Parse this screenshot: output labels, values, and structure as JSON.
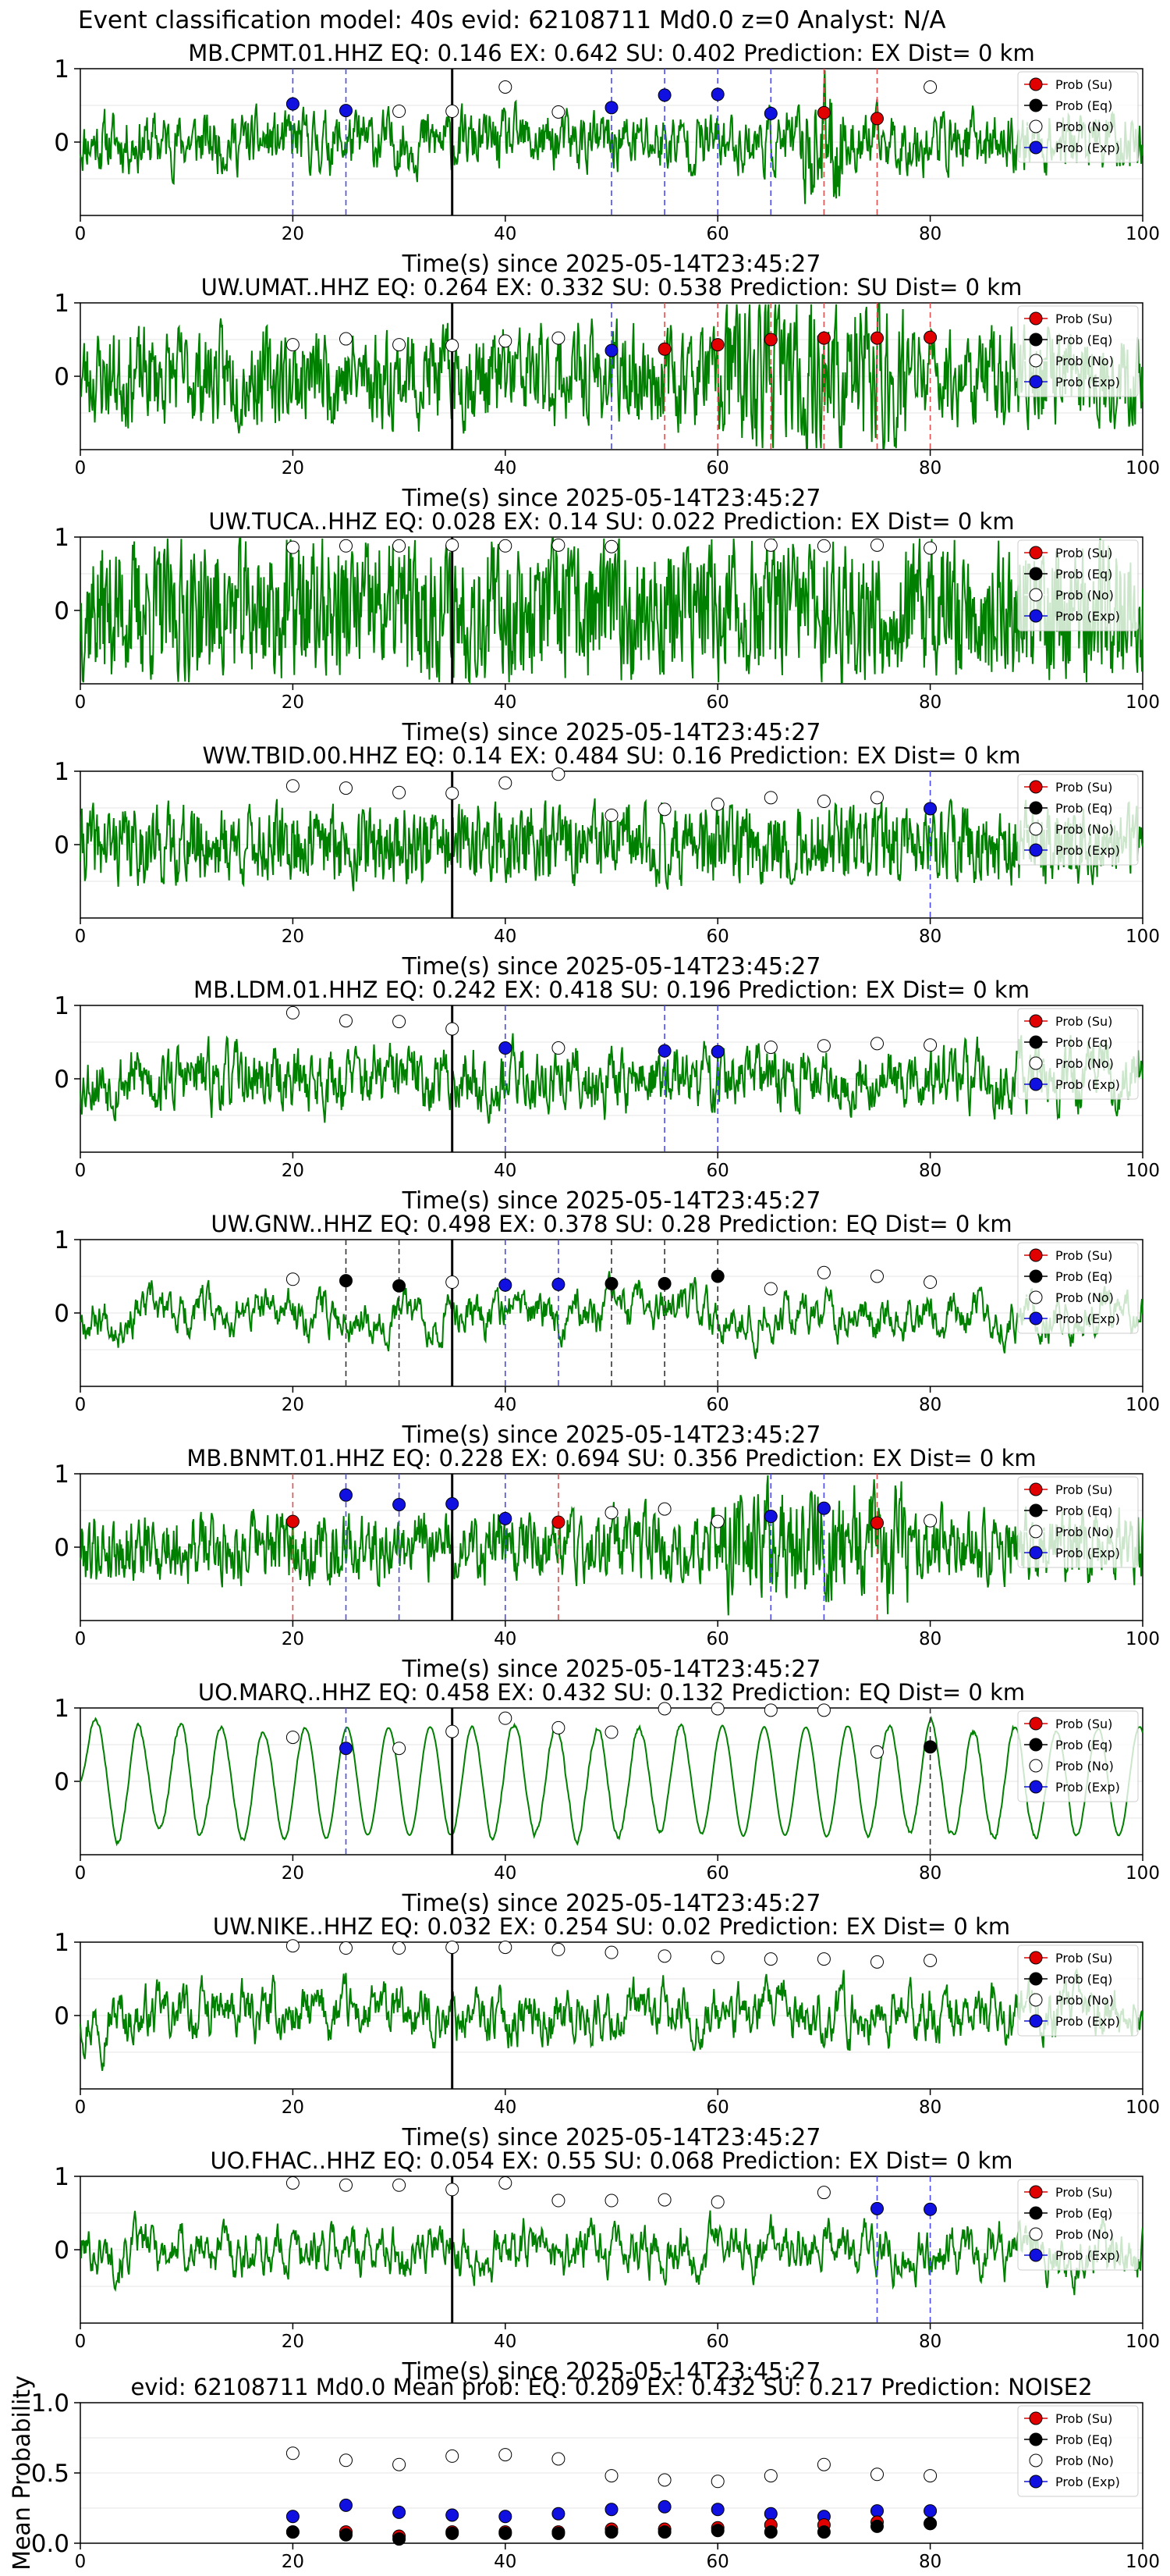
{
  "figure": {
    "title": "Event classification model: 40s evid: 62108711 Md0.0 z=0 Analyst: N/A"
  },
  "legend_items": [
    {
      "label": "Prob (Su)",
      "fill": "#e00000"
    },
    {
      "label": "Prob (Eq)",
      "fill": "#000000"
    },
    {
      "label": "Prob (No)",
      "fill": "#ffffff"
    },
    {
      "label": "Prob (Exp)",
      "fill": "#1010e0"
    }
  ],
  "colors": {
    "waveform": "#008000",
    "su": "#e00000",
    "eq": "#000000",
    "no": "#ffffff",
    "exp": "#1010e0",
    "origin_line": "#000000"
  },
  "chart_data": [
    {
      "type": "line",
      "title": "MB.CPMT.01.HHZ   EQ: 0.146  EX: 0.642  SU: 0.402   Prediction: EX    Dist= 0 km",
      "xlabel": "Time(s) since 2025-05-14T23:45:27",
      "ylabel": "",
      "xlim": [
        0,
        100
      ],
      "ylim": [
        -1,
        1
      ],
      "xticks": [
        "0",
        "20",
        "40",
        "60",
        "80",
        "100"
      ],
      "yticks": [
        "1",
        "0"
      ],
      "grid": true,
      "legend": "top-right",
      "origin_time": 35,
      "points": [
        {
          "t": 20,
          "p": 0.52,
          "cls": "exp"
        },
        {
          "t": 25,
          "p": 0.43,
          "cls": "exp"
        },
        {
          "t": 30,
          "p": 0.42,
          "cls": "no"
        },
        {
          "t": 35,
          "p": 0.42,
          "cls": "no"
        },
        {
          "t": 40,
          "p": 0.75,
          "cls": "no"
        },
        {
          "t": 45,
          "p": 0.41,
          "cls": "no"
        },
        {
          "t": 50,
          "p": 0.47,
          "cls": "exp"
        },
        {
          "t": 55,
          "p": 0.64,
          "cls": "exp"
        },
        {
          "t": 60,
          "p": 0.65,
          "cls": "exp"
        },
        {
          "t": 65,
          "p": 0.39,
          "cls": "exp"
        },
        {
          "t": 70,
          "p": 0.4,
          "cls": "su"
        },
        {
          "t": 75,
          "p": 0.32,
          "cls": "su"
        },
        {
          "t": 80,
          "p": 0.75,
          "cls": "no"
        }
      ]
    },
    {
      "type": "line",
      "title": "UW.UMAT..HHZ   EQ: 0.264  EX: 0.332  SU: 0.538   Prediction: SU    Dist= 0 km",
      "xlabel": "Time(s) since 2025-05-14T23:45:27",
      "ylabel": "",
      "xlim": [
        0,
        100
      ],
      "ylim": [
        -1,
        1
      ],
      "xticks": [
        "0",
        "20",
        "40",
        "60",
        "80",
        "100"
      ],
      "yticks": [
        "1",
        "0"
      ],
      "grid": true,
      "legend": "top-right",
      "origin_time": 35,
      "points": [
        {
          "t": 20,
          "p": 0.43,
          "cls": "no"
        },
        {
          "t": 25,
          "p": 0.51,
          "cls": "no"
        },
        {
          "t": 30,
          "p": 0.43,
          "cls": "no"
        },
        {
          "t": 35,
          "p": 0.42,
          "cls": "no"
        },
        {
          "t": 40,
          "p": 0.48,
          "cls": "no"
        },
        {
          "t": 45,
          "p": 0.52,
          "cls": "no"
        },
        {
          "t": 50,
          "p": 0.35,
          "cls": "exp"
        },
        {
          "t": 55,
          "p": 0.37,
          "cls": "su"
        },
        {
          "t": 60,
          "p": 0.43,
          "cls": "su"
        },
        {
          "t": 65,
          "p": 0.5,
          "cls": "su"
        },
        {
          "t": 70,
          "p": 0.52,
          "cls": "su"
        },
        {
          "t": 75,
          "p": 0.52,
          "cls": "su"
        },
        {
          "t": 80,
          "p": 0.53,
          "cls": "su"
        }
      ]
    },
    {
      "type": "line",
      "title": "UW.TUCA..HHZ   EQ: 0.028  EX: 0.14  SU: 0.022   Prediction: EX    Dist= 0 km",
      "xlabel": "Time(s) since 2025-05-14T23:45:27",
      "ylabel": "",
      "xlim": [
        0,
        100
      ],
      "ylim": [
        -1,
        1
      ],
      "xticks": [
        "0",
        "20",
        "40",
        "60",
        "80",
        "100"
      ],
      "yticks": [
        "1",
        "0"
      ],
      "grid": true,
      "legend": "top-right",
      "origin_time": 35,
      "points": [
        {
          "t": 20,
          "p": 0.86,
          "cls": "no"
        },
        {
          "t": 25,
          "p": 0.88,
          "cls": "no"
        },
        {
          "t": 30,
          "p": 0.88,
          "cls": "no"
        },
        {
          "t": 35,
          "p": 0.89,
          "cls": "no"
        },
        {
          "t": 40,
          "p": 0.88,
          "cls": "no"
        },
        {
          "t": 45,
          "p": 0.89,
          "cls": "no"
        },
        {
          "t": 50,
          "p": 0.87,
          "cls": "no"
        },
        {
          "t": 65,
          "p": 0.89,
          "cls": "no"
        },
        {
          "t": 70,
          "p": 0.88,
          "cls": "no"
        },
        {
          "t": 75,
          "p": 0.89,
          "cls": "no"
        },
        {
          "t": 80,
          "p": 0.85,
          "cls": "no"
        }
      ]
    },
    {
      "type": "line",
      "title": "WW.TBID.00.HHZ   EQ: 0.14  EX: 0.484  SU: 0.16   Prediction: EX    Dist= 0 km",
      "xlabel": "Time(s) since 2025-05-14T23:45:27",
      "ylabel": "",
      "xlim": [
        0,
        100
      ],
      "ylim": [
        -1,
        1
      ],
      "xticks": [
        "0",
        "20",
        "40",
        "60",
        "80",
        "100"
      ],
      "yticks": [
        "1",
        "0"
      ],
      "grid": true,
      "legend": "top-right",
      "origin_time": 35,
      "points": [
        {
          "t": 20,
          "p": 0.8,
          "cls": "no"
        },
        {
          "t": 25,
          "p": 0.77,
          "cls": "no"
        },
        {
          "t": 30,
          "p": 0.71,
          "cls": "no"
        },
        {
          "t": 35,
          "p": 0.7,
          "cls": "no"
        },
        {
          "t": 40,
          "p": 0.84,
          "cls": "no"
        },
        {
          "t": 45,
          "p": 0.96,
          "cls": "no"
        },
        {
          "t": 50,
          "p": 0.4,
          "cls": "no"
        },
        {
          "t": 55,
          "p": 0.48,
          "cls": "no"
        },
        {
          "t": 60,
          "p": 0.55,
          "cls": "no"
        },
        {
          "t": 65,
          "p": 0.64,
          "cls": "no"
        },
        {
          "t": 70,
          "p": 0.59,
          "cls": "no"
        },
        {
          "t": 75,
          "p": 0.64,
          "cls": "no"
        },
        {
          "t": 80,
          "p": 0.49,
          "cls": "exp"
        }
      ]
    },
    {
      "type": "line",
      "title": "MB.LDM.01.HHZ   EQ: 0.242  EX: 0.418  SU: 0.196   Prediction: EX    Dist= 0 km",
      "xlabel": "Time(s) since 2025-05-14T23:45:27",
      "ylabel": "",
      "xlim": [
        0,
        100
      ],
      "ylim": [
        -1,
        1
      ],
      "xticks": [
        "0",
        "20",
        "40",
        "60",
        "80",
        "100"
      ],
      "yticks": [
        "1",
        "0"
      ],
      "grid": true,
      "legend": "top-right",
      "origin_time": 35,
      "points": [
        {
          "t": 20,
          "p": 0.9,
          "cls": "no"
        },
        {
          "t": 25,
          "p": 0.79,
          "cls": "no"
        },
        {
          "t": 30,
          "p": 0.78,
          "cls": "no"
        },
        {
          "t": 35,
          "p": 0.68,
          "cls": "no"
        },
        {
          "t": 40,
          "p": 0.42,
          "cls": "exp"
        },
        {
          "t": 45,
          "p": 0.42,
          "cls": "no"
        },
        {
          "t": 55,
          "p": 0.38,
          "cls": "exp"
        },
        {
          "t": 60,
          "p": 0.37,
          "cls": "exp"
        },
        {
          "t": 65,
          "p": 0.43,
          "cls": "no"
        },
        {
          "t": 70,
          "p": 0.45,
          "cls": "no"
        },
        {
          "t": 75,
          "p": 0.48,
          "cls": "no"
        },
        {
          "t": 80,
          "p": 0.46,
          "cls": "no"
        }
      ]
    },
    {
      "type": "line",
      "title": "UW.GNW..HHZ   EQ: 0.498  EX: 0.378  SU: 0.28   Prediction: EQ    Dist= 0 km",
      "xlabel": "Time(s) since 2025-05-14T23:45:27",
      "ylabel": "",
      "xlim": [
        0,
        100
      ],
      "ylim": [
        -1,
        1
      ],
      "xticks": [
        "0",
        "20",
        "40",
        "60",
        "80",
        "100"
      ],
      "yticks": [
        "1",
        "0"
      ],
      "grid": true,
      "legend": "top-right",
      "origin_time": 35,
      "points": [
        {
          "t": 20,
          "p": 0.46,
          "cls": "no"
        },
        {
          "t": 25,
          "p": 0.44,
          "cls": "eq"
        },
        {
          "t": 30,
          "p": 0.37,
          "cls": "eq"
        },
        {
          "t": 35,
          "p": 0.42,
          "cls": "no"
        },
        {
          "t": 40,
          "p": 0.38,
          "cls": "exp"
        },
        {
          "t": 45,
          "p": 0.39,
          "cls": "exp"
        },
        {
          "t": 50,
          "p": 0.4,
          "cls": "eq"
        },
        {
          "t": 55,
          "p": 0.4,
          "cls": "eq"
        },
        {
          "t": 60,
          "p": 0.5,
          "cls": "eq"
        },
        {
          "t": 65,
          "p": 0.33,
          "cls": "no"
        },
        {
          "t": 70,
          "p": 0.55,
          "cls": "no"
        },
        {
          "t": 75,
          "p": 0.5,
          "cls": "no"
        },
        {
          "t": 80,
          "p": 0.42,
          "cls": "no"
        }
      ]
    },
    {
      "type": "line",
      "title": "MB.BNMT.01.HHZ   EQ: 0.228  EX: 0.694  SU: 0.356   Prediction: EX    Dist= 0 km",
      "xlabel": "Time(s) since 2025-05-14T23:45:27",
      "ylabel": "",
      "xlim": [
        0,
        100
      ],
      "ylim": [
        -1,
        1
      ],
      "xticks": [
        "0",
        "20",
        "40",
        "60",
        "80",
        "100"
      ],
      "yticks": [
        "1",
        "0"
      ],
      "grid": true,
      "legend": "top-right",
      "origin_time": 35,
      "points": [
        {
          "t": 20,
          "p": 0.35,
          "cls": "su"
        },
        {
          "t": 25,
          "p": 0.71,
          "cls": "exp"
        },
        {
          "t": 30,
          "p": 0.58,
          "cls": "exp"
        },
        {
          "t": 35,
          "p": 0.59,
          "cls": "exp"
        },
        {
          "t": 40,
          "p": 0.39,
          "cls": "exp"
        },
        {
          "t": 45,
          "p": 0.34,
          "cls": "su"
        },
        {
          "t": 50,
          "p": 0.47,
          "cls": "no"
        },
        {
          "t": 55,
          "p": 0.52,
          "cls": "no"
        },
        {
          "t": 60,
          "p": 0.35,
          "cls": "no"
        },
        {
          "t": 65,
          "p": 0.42,
          "cls": "exp"
        },
        {
          "t": 70,
          "p": 0.53,
          "cls": "exp"
        },
        {
          "t": 75,
          "p": 0.33,
          "cls": "su"
        },
        {
          "t": 80,
          "p": 0.36,
          "cls": "no"
        }
      ]
    },
    {
      "type": "line",
      "title": "UO.MARQ..HHZ   EQ: 0.458  EX: 0.432  SU: 0.132   Prediction: EQ    Dist= 0 km",
      "xlabel": "Time(s) since 2025-05-14T23:45:27",
      "ylabel": "",
      "xlim": [
        0,
        100
      ],
      "ylim": [
        -1,
        1
      ],
      "xticks": [
        "0",
        "20",
        "40",
        "60",
        "80",
        "100"
      ],
      "yticks": [
        "1",
        "0"
      ],
      "grid": true,
      "legend": "top-right",
      "origin_time": 35,
      "points": [
        {
          "t": 20,
          "p": 0.6,
          "cls": "no"
        },
        {
          "t": 25,
          "p": 0.45,
          "cls": "exp"
        },
        {
          "t": 30,
          "p": 0.45,
          "cls": "no"
        },
        {
          "t": 35,
          "p": 0.68,
          "cls": "no"
        },
        {
          "t": 40,
          "p": 0.86,
          "cls": "no"
        },
        {
          "t": 45,
          "p": 0.73,
          "cls": "no"
        },
        {
          "t": 50,
          "p": 0.67,
          "cls": "no"
        },
        {
          "t": 55,
          "p": 0.99,
          "cls": "no"
        },
        {
          "t": 60,
          "p": 0.99,
          "cls": "no"
        },
        {
          "t": 65,
          "p": 0.97,
          "cls": "no"
        },
        {
          "t": 70,
          "p": 0.97,
          "cls": "no"
        },
        {
          "t": 75,
          "p": 0.4,
          "cls": "no"
        },
        {
          "t": 80,
          "p": 0.47,
          "cls": "eq"
        }
      ]
    },
    {
      "type": "line",
      "title": "UW.NIKE..HHZ   EQ: 0.032  EX: 0.254  SU: 0.02   Prediction: EX    Dist= 0 km",
      "xlabel": "Time(s) since 2025-05-14T23:45:27",
      "ylabel": "",
      "xlim": [
        0,
        100
      ],
      "ylim": [
        -1,
        1
      ],
      "xticks": [
        "0",
        "20",
        "40",
        "60",
        "80",
        "100"
      ],
      "yticks": [
        "1",
        "0"
      ],
      "grid": true,
      "legend": "top-right",
      "origin_time": 35,
      "points": [
        {
          "t": 20,
          "p": 0.95,
          "cls": "no"
        },
        {
          "t": 25,
          "p": 0.92,
          "cls": "no"
        },
        {
          "t": 30,
          "p": 0.92,
          "cls": "no"
        },
        {
          "t": 35,
          "p": 0.93,
          "cls": "no"
        },
        {
          "t": 40,
          "p": 0.93,
          "cls": "no"
        },
        {
          "t": 45,
          "p": 0.9,
          "cls": "no"
        },
        {
          "t": 50,
          "p": 0.86,
          "cls": "no"
        },
        {
          "t": 55,
          "p": 0.81,
          "cls": "no"
        },
        {
          "t": 60,
          "p": 0.79,
          "cls": "no"
        },
        {
          "t": 65,
          "p": 0.77,
          "cls": "no"
        },
        {
          "t": 70,
          "p": 0.77,
          "cls": "no"
        },
        {
          "t": 75,
          "p": 0.73,
          "cls": "no"
        },
        {
          "t": 80,
          "p": 0.75,
          "cls": "no"
        }
      ]
    },
    {
      "type": "line",
      "title": "UO.FHAC..HHZ   EQ: 0.054  EX: 0.55  SU: 0.068   Prediction: EX    Dist= 0 km",
      "xlabel": "Time(s) since 2025-05-14T23:45:27",
      "ylabel": "",
      "xlim": [
        0,
        100
      ],
      "ylim": [
        -1,
        1
      ],
      "xticks": [
        "0",
        "20",
        "40",
        "60",
        "80",
        "100"
      ],
      "yticks": [
        "1",
        "0"
      ],
      "grid": true,
      "legend": "top-right",
      "origin_time": 35,
      "points": [
        {
          "t": 20,
          "p": 0.91,
          "cls": "no"
        },
        {
          "t": 25,
          "p": 0.88,
          "cls": "no"
        },
        {
          "t": 30,
          "p": 0.88,
          "cls": "no"
        },
        {
          "t": 35,
          "p": 0.82,
          "cls": "no"
        },
        {
          "t": 40,
          "p": 0.91,
          "cls": "no"
        },
        {
          "t": 45,
          "p": 0.67,
          "cls": "no"
        },
        {
          "t": 50,
          "p": 0.67,
          "cls": "no"
        },
        {
          "t": 55,
          "p": 0.68,
          "cls": "no"
        },
        {
          "t": 60,
          "p": 0.65,
          "cls": "no"
        },
        {
          "t": 70,
          "p": 0.78,
          "cls": "no"
        },
        {
          "t": 75,
          "p": 0.56,
          "cls": "exp"
        },
        {
          "t": 80,
          "p": 0.55,
          "cls": "exp"
        }
      ]
    },
    {
      "type": "scatter",
      "title": "evid: 62108711  Md0.0   Mean prob:   EQ: 0.209  EX: 0.432  SU: 0.217   Prediction: NOISE2",
      "xlabel": "",
      "ylabel": "Mean Probability",
      "xlim": [
        0,
        100
      ],
      "ylim": [
        0,
        1
      ],
      "xticks": [
        "0",
        "20",
        "40",
        "60",
        "80",
        "100"
      ],
      "yticks": [
        "0.0",
        "0.5",
        "1.0"
      ],
      "grid": true,
      "legend": "top-right",
      "x": [
        20,
        25,
        30,
        35,
        40,
        45,
        50,
        55,
        60,
        65,
        70,
        75,
        80
      ],
      "series": [
        {
          "name": "Prob (No)",
          "cls": "no",
          "values": [
            0.64,
            0.59,
            0.56,
            0.62,
            0.63,
            0.6,
            0.48,
            0.45,
            0.44,
            0.48,
            0.56,
            0.49,
            0.48
          ]
        },
        {
          "name": "Prob (Exp)",
          "cls": "exp",
          "values": [
            0.19,
            0.27,
            0.22,
            0.2,
            0.19,
            0.21,
            0.24,
            0.26,
            0.24,
            0.21,
            0.19,
            0.23,
            0.23
          ]
        },
        {
          "name": "Prob (Su)",
          "cls": "su",
          "values": [
            0.08,
            0.08,
            0.05,
            0.08,
            0.08,
            0.08,
            0.1,
            0.1,
            0.11,
            0.13,
            0.13,
            0.15,
            0.14
          ]
        },
        {
          "name": "Prob (Eq)",
          "cls": "eq",
          "values": [
            0.08,
            0.06,
            0.03,
            0.07,
            0.07,
            0.07,
            0.08,
            0.08,
            0.09,
            0.08,
            0.08,
            0.12,
            0.14
          ]
        }
      ]
    }
  ]
}
